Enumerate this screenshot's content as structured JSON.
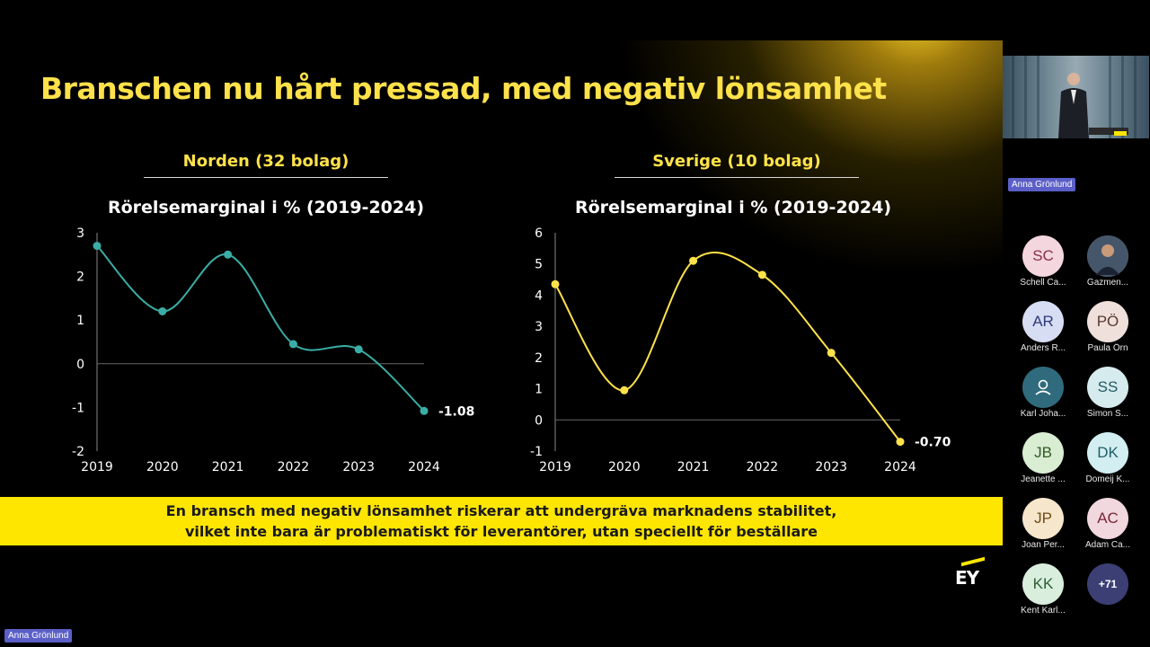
{
  "slide": {
    "title": "Branschen nu hårt pressad, med negativ lönsamhet",
    "banner_line1": "En bransch med negativ lönsamhet riskerar att undergräva marknadens stabilitet,",
    "banner_line2": "vilket inte bara är problematiskt för leverantörer, utan speciellt för beställare",
    "logo_text": "EY",
    "accent_color": "#FFE600",
    "title_color": "#FFE24A"
  },
  "panels": [
    {
      "heading": "Norden (32 bolag)",
      "chart_title": "Rörelsemarginal i % (2019-2024)"
    },
    {
      "heading": "Sverige (10 bolag)",
      "chart_title": "Rörelsemarginal i % (2019-2024)"
    }
  ],
  "chart_data": [
    {
      "type": "line",
      "title": "Rörelsemarginal i % (2019-2024)",
      "categories": [
        "2019",
        "2020",
        "2021",
        "2022",
        "2023",
        "2024"
      ],
      "series": [
        {
          "values": [
            2.7,
            1.2,
            2.5,
            0.45,
            0.33,
            -1.08
          ],
          "color": "#3AAEA6"
        }
      ],
      "ylim": [
        -2,
        3
      ],
      "yticks": [
        3,
        2,
        1,
        0,
        -1,
        -2
      ],
      "end_label": "-1.08",
      "smooth": true,
      "grid": false
    },
    {
      "type": "line",
      "title": "Rörelsemarginal i % (2019-2024)",
      "categories": [
        "2019",
        "2020",
        "2021",
        "2022",
        "2023",
        "2024"
      ],
      "series": [
        {
          "values": [
            4.35,
            0.95,
            5.1,
            4.65,
            2.15,
            -0.7
          ],
          "color": "#FFE24A"
        }
      ],
      "ylim": [
        -1,
        6
      ],
      "yticks": [
        6,
        5,
        4,
        3,
        2,
        1,
        0,
        -1
      ],
      "end_label": "-0.70",
      "smooth": true,
      "grid": false
    }
  ],
  "meeting": {
    "presenter_name": "Anna Grönlund",
    "bottom_name": "Anna Grönlund",
    "participants": [
      {
        "initials": "SC",
        "name": "Schell Ca...",
        "bg": "#F4D6DF",
        "fg": "#8B2F4C"
      },
      {
        "initials": "",
        "name": "Gazmen...",
        "bg": "#4a5a6a",
        "fg": "#ffffff",
        "photo": true
      },
      {
        "initials": "AR",
        "name": "Anders R...",
        "bg": "#D7DDF3",
        "fg": "#2E3A7A"
      },
      {
        "initials": "PÖ",
        "name": "Paula Örn",
        "bg": "#EFE0DC",
        "fg": "#5A3A30"
      },
      {
        "initials": "",
        "name": "Karl Joha...",
        "bg": "#2F6B7C",
        "fg": "#ffffff",
        "icon": "person-icon"
      },
      {
        "initials": "SS",
        "name": "Simon S...",
        "bg": "#D6EBEE",
        "fg": "#235A63"
      },
      {
        "initials": "JB",
        "name": "Jeanette ...",
        "bg": "#D9EDD3",
        "fg": "#2F5B22"
      },
      {
        "initials": "DK",
        "name": "Domeij K...",
        "bg": "#D2EEF1",
        "fg": "#1F5E66"
      },
      {
        "initials": "JP",
        "name": "Joan Per...",
        "bg": "#F6E6CC",
        "fg": "#6E4A14"
      },
      {
        "initials": "AC",
        "name": "Adam Ca...",
        "bg": "#F1D8DE",
        "fg": "#7A2538"
      },
      {
        "initials": "KK",
        "name": "Kent Karl...",
        "bg": "#D9EEDC",
        "fg": "#2C5E35"
      }
    ],
    "more_count": "+71"
  }
}
